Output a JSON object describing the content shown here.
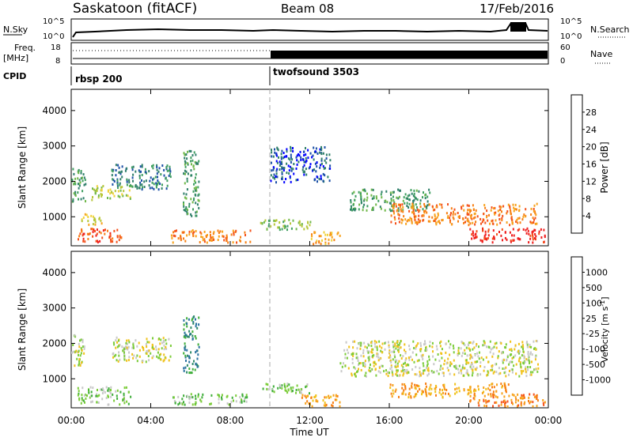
{
  "header": {
    "station": "Saskatoon (fitACF)",
    "beam": "Beam 08",
    "date": "17/Feb/2016"
  },
  "top_panels": {
    "nsky_label": "N.Sky",
    "nsky_ticks": [
      "10^5",
      "10^0"
    ],
    "nsearch_label": "N.Search",
    "nsearch_ticks": [
      "10^5",
      "10^0"
    ],
    "freq_label_1": "Freq.",
    "freq_label_2": "[MHz]",
    "freq_ticks": [
      "18",
      "8"
    ],
    "nave_label": "Nave",
    "nave_ticks": [
      "60",
      "0"
    ],
    "cpid_label": "CPID",
    "cpid_segments": [
      {
        "label": "rbsp 200",
        "start_hour": 0
      },
      {
        "label": "twofsound 3503",
        "start_hour": 10
      }
    ]
  },
  "chart_data": [
    {
      "type": "heatmap",
      "quantity": "power",
      "ylabel": "Slant Range [km]",
      "ylim": [
        180,
        4600
      ],
      "yticks": [
        1000,
        2000,
        3000,
        4000
      ],
      "xlim_hours": [
        0,
        24
      ],
      "colorbar": {
        "label": "Power [dB]",
        "ticks": [
          "28",
          "24",
          "20",
          "16",
          "12",
          "8",
          "4"
        ],
        "colors": [
          "#0000ff",
          "#1b4fa6",
          "#2f7f6a",
          "#3f9f60",
          "#70b84a",
          "#b7c63a",
          "#f0d23a",
          "#f7a21c",
          "#f77f14",
          "#f4511b",
          "#ef1d1d"
        ]
      },
      "regions": [
        {
          "hours": [
            0.0,
            0.7
          ],
          "range_km": [
            1400,
            2400
          ],
          "level": 3
        },
        {
          "hours": [
            0.3,
            2.5
          ],
          "range_km": [
            300,
            700
          ],
          "level": 9
        },
        {
          "hours": [
            0.5,
            1.5
          ],
          "range_km": [
            800,
            1100
          ],
          "level": 6
        },
        {
          "hours": [
            1.0,
            3.0
          ],
          "range_km": [
            1500,
            1900
          ],
          "level": 5
        },
        {
          "hours": [
            2.0,
            5.0
          ],
          "range_km": [
            1800,
            2500
          ],
          "level": 2
        },
        {
          "hours": [
            5.6,
            6.4
          ],
          "range_km": [
            1000,
            2900
          ],
          "level": 3
        },
        {
          "hours": [
            5.0,
            9.0
          ],
          "range_km": [
            300,
            650
          ],
          "level": 8
        },
        {
          "hours": [
            9.5,
            12.0
          ],
          "range_km": [
            650,
            950
          ],
          "level": 4
        },
        {
          "hours": [
            12.0,
            13.5
          ],
          "range_km": [
            250,
            600
          ],
          "level": 7
        },
        {
          "hours": [
            14.0,
            18.0
          ],
          "range_km": [
            1200,
            1800
          ],
          "level": 3
        },
        {
          "hours": [
            16.0,
            23.5
          ],
          "range_km": [
            800,
            1400
          ],
          "level": 8
        },
        {
          "hours": [
            20.0,
            23.8
          ],
          "range_km": [
            300,
            700
          ],
          "level": 10
        },
        {
          "hours": [
            10.0,
            13.0
          ],
          "range_km": [
            2000,
            3000
          ],
          "level": 1
        }
      ]
    },
    {
      "type": "heatmap",
      "quantity": "velocity",
      "ylabel": "Slant Range [km]",
      "ylim": [
        180,
        4600
      ],
      "yticks": [
        1000,
        2000,
        3000,
        4000
      ],
      "xlabel": "Time UT",
      "xlim_hours": [
        0,
        24
      ],
      "xticks": [
        "00:00",
        "04:00",
        "08:00",
        "12:00",
        "16:00",
        "20:00",
        "00:00"
      ],
      "colorbar": {
        "label": "Velocity [m s",
        "label_sup": "-1",
        "label_end": "]",
        "ticks": [
          "1000",
          "500",
          "100",
          "25",
          "-25",
          "-100",
          "-500",
          "-1000"
        ],
        "colors": [
          "#1a3fa8",
          "#2a72a0",
          "#2f8a6a",
          "#3fae3a",
          "#7ccc3a",
          "#c8c8c8",
          "#f0c21a",
          "#f7a21c",
          "#f77f14",
          "#f4511b",
          "#ef1d1d"
        ]
      },
      "regions": [
        {
          "hours": [
            0.0,
            0.7
          ],
          "range_km": [
            1400,
            2300
          ],
          "level": 5
        },
        {
          "hours": [
            0.3,
            3.0
          ],
          "range_km": [
            300,
            800
          ],
          "level": 4
        },
        {
          "hours": [
            2.0,
            5.0
          ],
          "range_km": [
            1500,
            2200
          ],
          "level": 5
        },
        {
          "hours": [
            5.6,
            6.4
          ],
          "range_km": [
            1200,
            2800
          ],
          "level": 2
        },
        {
          "hours": [
            5.0,
            9.0
          ],
          "range_km": [
            300,
            600
          ],
          "level": 4
        },
        {
          "hours": [
            9.5,
            12.0
          ],
          "range_km": [
            600,
            900
          ],
          "level": 4
        },
        {
          "hours": [
            11.5,
            13.5
          ],
          "range_km": [
            250,
            600
          ],
          "level": 7
        },
        {
          "hours": [
            13.5,
            23.5
          ],
          "range_km": [
            1100,
            2100
          ],
          "level": 5
        },
        {
          "hours": [
            16.0,
            22.0
          ],
          "range_km": [
            500,
            900
          ],
          "level": 7
        },
        {
          "hours": [
            20.0,
            23.8
          ],
          "range_km": [
            250,
            600
          ],
          "level": 8
        }
      ]
    }
  ]
}
